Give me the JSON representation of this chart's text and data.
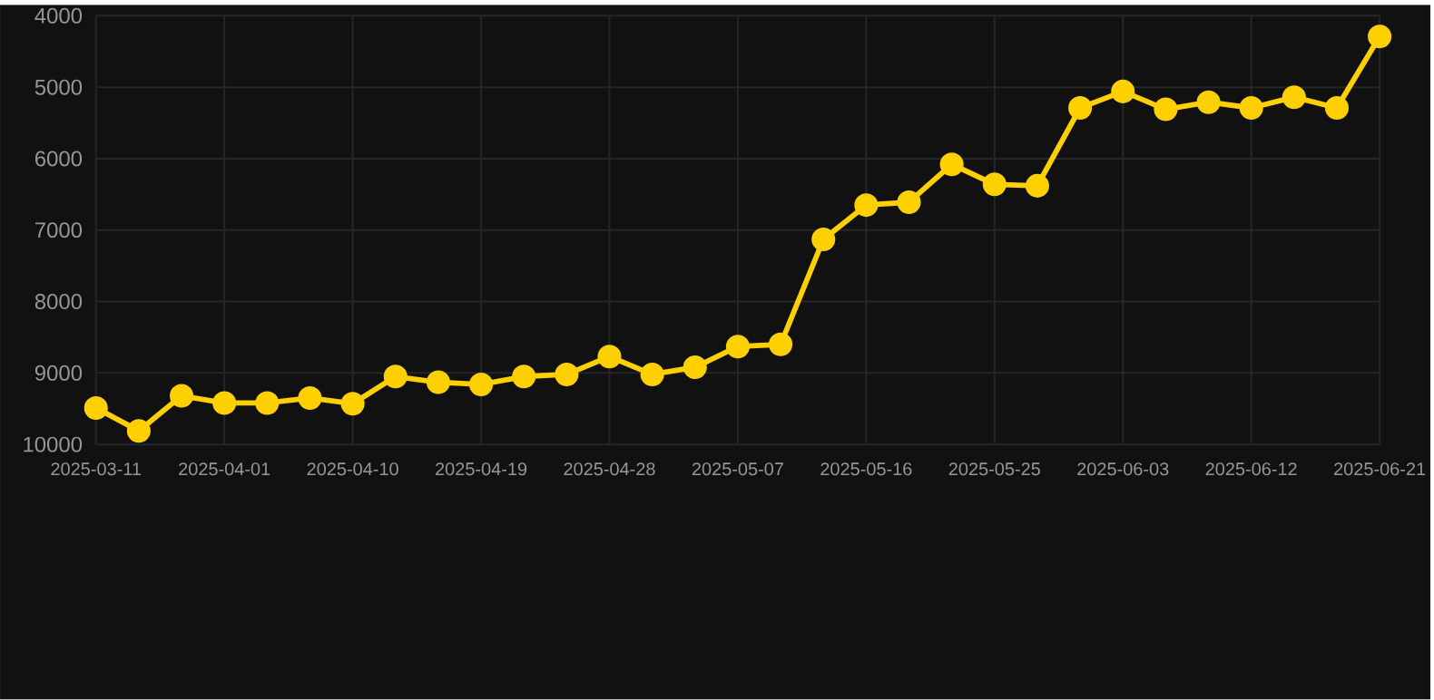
{
  "chart_data": {
    "type": "line",
    "categories": [
      "2025-03-11",
      null,
      null,
      "2025-04-01",
      null,
      null,
      "2025-04-10",
      null,
      null,
      "2025-04-19",
      null,
      null,
      "2025-04-28",
      null,
      null,
      "2025-05-07",
      null,
      null,
      "2025-05-16",
      null,
      null,
      "2025-05-25",
      null,
      null,
      "2025-06-03",
      null,
      null,
      "2025-06-12",
      null,
      null,
      "2025-06-21"
    ],
    "series": [
      {
        "color": "#ffd000",
        "values": [
          9490,
          9810,
          9320,
          9420,
          9420,
          9350,
          9430,
          9050,
          9130,
          9160,
          9050,
          9020,
          8770,
          9020,
          8920,
          8630,
          8600,
          7130,
          6650,
          6610,
          6080,
          6360,
          6380,
          5290,
          5060,
          5310,
          5210,
          5290,
          5140,
          5290,
          4290
        ]
      }
    ],
    "ylim": [
      10000,
      4000
    ],
    "yticks": [
      4000,
      5000,
      6000,
      7000,
      8000,
      9000,
      10000
    ],
    "grid": true,
    "marker": "circle",
    "line_style": "solid",
    "legend": false
  }
}
